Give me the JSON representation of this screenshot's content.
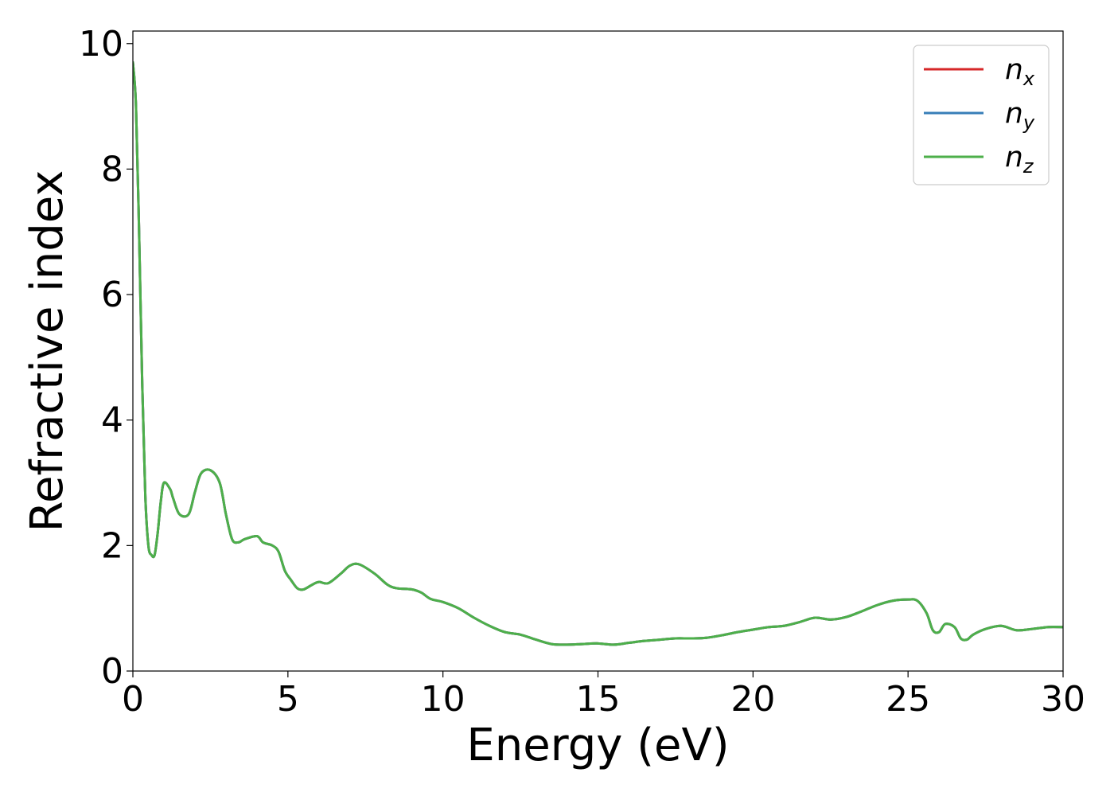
{
  "chart_data": {
    "type": "line",
    "title": "",
    "xlabel": "Energy (eV)",
    "ylabel": "Refractive index",
    "xlim": [
      0,
      30
    ],
    "ylim": [
      0,
      10.2
    ],
    "xticks": [
      0,
      5,
      10,
      15,
      20,
      25,
      30
    ],
    "xtick_labels": [
      "0",
      "5",
      "10",
      "15",
      "20",
      "25",
      "30"
    ],
    "yticks": [
      0,
      2,
      4,
      6,
      8,
      10
    ],
    "ytick_labels": [
      "0",
      "2",
      "4",
      "6",
      "8",
      "10"
    ],
    "grid": false,
    "legend_position": "top-right",
    "series": [
      {
        "name": "n_x",
        "legend": {
          "base": "n",
          "sub": "x"
        },
        "color": "#d62728",
        "x": [
          0.0,
          0.1,
          0.2,
          0.3,
          0.4,
          0.5,
          0.6,
          0.7,
          0.8,
          0.9,
          1.0,
          1.2,
          1.3,
          1.5,
          1.8,
          2.0,
          2.2,
          2.5,
          2.8,
          3.0,
          3.2,
          3.4,
          3.6,
          4.0,
          4.2,
          4.5,
          4.7,
          4.9,
          5.1,
          5.3,
          5.5,
          5.8,
          6.0,
          6.3,
          6.7,
          7.0,
          7.3,
          7.8,
          8.2,
          8.5,
          9.0,
          9.3,
          9.6,
          10.0,
          10.5,
          11.0,
          11.5,
          12.0,
          12.5,
          13.0,
          13.5,
          14.0,
          14.5,
          15.0,
          15.5,
          16.0,
          16.5,
          17.0,
          17.5,
          18.0,
          18.5,
          19.0,
          19.5,
          20.0,
          20.5,
          21.0,
          21.5,
          22.0,
          22.5,
          23.0,
          23.5,
          24.0,
          24.5,
          25.0,
          25.3,
          25.6,
          25.8,
          26.0,
          26.2,
          26.5,
          26.7,
          26.9,
          27.1,
          27.5,
          28.0,
          28.5,
          29.0,
          29.5,
          30.0
        ],
        "y": [
          9.7,
          9.0,
          7.0,
          4.6,
          2.8,
          2.0,
          1.85,
          1.85,
          2.2,
          2.7,
          3.0,
          2.9,
          2.75,
          2.5,
          2.5,
          2.85,
          3.15,
          3.2,
          3.0,
          2.5,
          2.1,
          2.05,
          2.1,
          2.15,
          2.05,
          2.0,
          1.9,
          1.6,
          1.45,
          1.32,
          1.3,
          1.38,
          1.42,
          1.4,
          1.55,
          1.68,
          1.7,
          1.55,
          1.38,
          1.32,
          1.3,
          1.25,
          1.15,
          1.1,
          1.0,
          0.85,
          0.72,
          0.62,
          0.58,
          0.5,
          0.43,
          0.42,
          0.43,
          0.44,
          0.42,
          0.45,
          0.48,
          0.5,
          0.52,
          0.52,
          0.53,
          0.57,
          0.62,
          0.66,
          0.7,
          0.72,
          0.78,
          0.85,
          0.82,
          0.86,
          0.95,
          1.05,
          1.12,
          1.14,
          1.12,
          0.92,
          0.65,
          0.62,
          0.75,
          0.7,
          0.52,
          0.5,
          0.58,
          0.67,
          0.72,
          0.65,
          0.67,
          0.7,
          0.7
        ]
      },
      {
        "name": "n_y",
        "legend": {
          "base": "n",
          "sub": "y"
        },
        "color": "#377eb8",
        "x": [
          0.0,
          0.1,
          0.2,
          0.3,
          0.4,
          0.5,
          0.6,
          0.7,
          0.8,
          0.9,
          1.0,
          1.2,
          1.3,
          1.5,
          1.8,
          2.0,
          2.2,
          2.5,
          2.8,
          3.0,
          3.2,
          3.4,
          3.6,
          4.0,
          4.2,
          4.5,
          4.7,
          4.9,
          5.1,
          5.3,
          5.5,
          5.8,
          6.0,
          6.3,
          6.7,
          7.0,
          7.3,
          7.8,
          8.2,
          8.5,
          9.0,
          9.3,
          9.6,
          10.0,
          10.5,
          11.0,
          11.5,
          12.0,
          12.5,
          13.0,
          13.5,
          14.0,
          14.5,
          15.0,
          15.5,
          16.0,
          16.5,
          17.0,
          17.5,
          18.0,
          18.5,
          19.0,
          19.5,
          20.0,
          20.5,
          21.0,
          21.5,
          22.0,
          22.5,
          23.0,
          23.5,
          24.0,
          24.5,
          25.0,
          25.3,
          25.6,
          25.8,
          26.0,
          26.2,
          26.5,
          26.7,
          26.9,
          27.1,
          27.5,
          28.0,
          28.5,
          29.0,
          29.5,
          30.0
        ],
        "y": [
          9.7,
          9.0,
          7.0,
          4.6,
          2.8,
          2.0,
          1.85,
          1.85,
          2.2,
          2.7,
          3.0,
          2.9,
          2.75,
          2.5,
          2.5,
          2.85,
          3.15,
          3.2,
          3.0,
          2.5,
          2.1,
          2.05,
          2.1,
          2.15,
          2.05,
          2.0,
          1.9,
          1.6,
          1.45,
          1.32,
          1.3,
          1.38,
          1.42,
          1.4,
          1.55,
          1.68,
          1.7,
          1.55,
          1.38,
          1.32,
          1.3,
          1.25,
          1.15,
          1.1,
          1.0,
          0.85,
          0.72,
          0.62,
          0.58,
          0.5,
          0.43,
          0.42,
          0.43,
          0.44,
          0.42,
          0.45,
          0.48,
          0.5,
          0.52,
          0.52,
          0.53,
          0.57,
          0.62,
          0.66,
          0.7,
          0.72,
          0.78,
          0.85,
          0.82,
          0.86,
          0.95,
          1.05,
          1.12,
          1.14,
          1.12,
          0.92,
          0.65,
          0.62,
          0.75,
          0.7,
          0.52,
          0.5,
          0.58,
          0.67,
          0.72,
          0.65,
          0.67,
          0.7,
          0.7
        ]
      },
      {
        "name": "n_z",
        "legend": {
          "base": "n",
          "sub": "z"
        },
        "color": "#4daf4a",
        "x": [
          0.0,
          0.1,
          0.2,
          0.3,
          0.4,
          0.5,
          0.6,
          0.7,
          0.8,
          0.9,
          1.0,
          1.2,
          1.3,
          1.5,
          1.8,
          2.0,
          2.2,
          2.5,
          2.8,
          3.0,
          3.2,
          3.4,
          3.6,
          4.0,
          4.2,
          4.5,
          4.7,
          4.9,
          5.1,
          5.3,
          5.5,
          5.8,
          6.0,
          6.3,
          6.7,
          7.0,
          7.3,
          7.8,
          8.2,
          8.5,
          9.0,
          9.3,
          9.6,
          10.0,
          10.5,
          11.0,
          11.5,
          12.0,
          12.5,
          13.0,
          13.5,
          14.0,
          14.5,
          15.0,
          15.5,
          16.0,
          16.5,
          17.0,
          17.5,
          18.0,
          18.5,
          19.0,
          19.5,
          20.0,
          20.5,
          21.0,
          21.5,
          22.0,
          22.5,
          23.0,
          23.5,
          24.0,
          24.5,
          25.0,
          25.3,
          25.6,
          25.8,
          26.0,
          26.2,
          26.5,
          26.7,
          26.9,
          27.1,
          27.5,
          28.0,
          28.5,
          29.0,
          29.5,
          30.0
        ],
        "y": [
          9.7,
          9.0,
          7.0,
          4.6,
          2.8,
          2.0,
          1.85,
          1.85,
          2.2,
          2.7,
          3.0,
          2.9,
          2.75,
          2.5,
          2.5,
          2.85,
          3.15,
          3.2,
          3.0,
          2.5,
          2.1,
          2.05,
          2.1,
          2.15,
          2.05,
          2.0,
          1.9,
          1.6,
          1.45,
          1.32,
          1.3,
          1.38,
          1.42,
          1.4,
          1.55,
          1.68,
          1.7,
          1.55,
          1.38,
          1.32,
          1.3,
          1.25,
          1.15,
          1.1,
          1.0,
          0.85,
          0.72,
          0.62,
          0.58,
          0.5,
          0.43,
          0.42,
          0.43,
          0.44,
          0.42,
          0.45,
          0.48,
          0.5,
          0.52,
          0.52,
          0.53,
          0.57,
          0.62,
          0.66,
          0.7,
          0.72,
          0.78,
          0.85,
          0.82,
          0.86,
          0.95,
          1.05,
          1.12,
          1.14,
          1.12,
          0.92,
          0.65,
          0.62,
          0.75,
          0.7,
          0.52,
          0.5,
          0.58,
          0.67,
          0.72,
          0.65,
          0.67,
          0.7,
          0.7
        ]
      }
    ]
  }
}
